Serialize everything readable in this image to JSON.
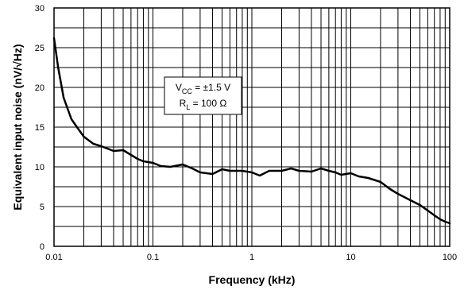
{
  "chart_data": {
    "type": "line",
    "title": "",
    "xlabel": "Frequency (kHz)",
    "ylabel": "Equivalent input noise (nV/√Hz)",
    "xscale": "log",
    "xlim": [
      0.01,
      100
    ],
    "ylim": [
      0,
      30
    ],
    "grid": true,
    "x_tick_labels": [
      "0.01",
      "0.1",
      "1",
      "10",
      "100"
    ],
    "y_tick_labels": [
      "0",
      "5",
      "10",
      "15",
      "20",
      "25",
      "30"
    ],
    "annotation": {
      "vcc_main": "V",
      "vcc_sub": "CC",
      "vcc_rest": " = ±1.5 V",
      "rl_main": "R",
      "rl_sub": "L",
      "rl_rest": " = 100 Ω"
    },
    "series": [
      {
        "color": "#000000",
        "x": [
          0.01,
          0.011,
          0.0125,
          0.015,
          0.0175,
          0.02,
          0.025,
          0.03,
          0.04,
          0.05,
          0.06,
          0.07,
          0.08,
          0.1,
          0.12,
          0.15,
          0.2,
          0.25,
          0.3,
          0.4,
          0.5,
          0.6,
          0.7,
          0.8,
          1.0,
          1.2,
          1.5,
          2.0,
          2.5,
          3.0,
          4.0,
          5.0,
          6.0,
          7.0,
          8.0,
          10,
          12,
          15,
          20,
          25,
          30,
          40,
          50,
          60,
          70,
          80,
          90,
          100
        ],
        "y": [
          26.2,
          22.5,
          18.7,
          16.0,
          14.8,
          13.8,
          12.9,
          12.6,
          12.0,
          12.1,
          11.5,
          11.0,
          10.7,
          10.5,
          10.1,
          10.0,
          10.3,
          9.8,
          9.3,
          9.1,
          9.7,
          9.5,
          9.5,
          9.5,
          9.3,
          8.9,
          9.5,
          9.5,
          9.8,
          9.5,
          9.4,
          9.8,
          9.5,
          9.3,
          9.0,
          9.2,
          8.8,
          8.6,
          8.1,
          7.2,
          6.6,
          5.8,
          5.2,
          4.5,
          3.9,
          3.4,
          3.1,
          2.9
        ]
      }
    ]
  }
}
